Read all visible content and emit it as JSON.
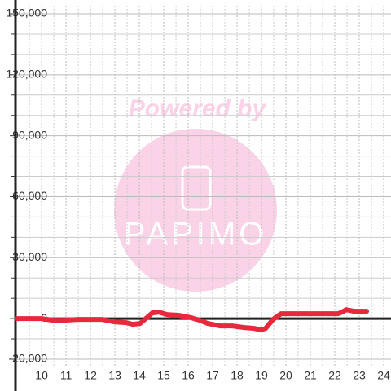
{
  "chart_data": {
    "type": "line",
    "x": [
      9.0,
      9.97,
      10.47,
      10.97,
      11.47,
      12.47,
      12.97,
      13.47,
      13.73,
      14.03,
      14.3,
      14.53,
      14.8,
      15.13,
      15.63,
      16.13,
      16.47,
      16.8,
      17.3,
      17.8,
      18.3,
      18.7,
      18.97,
      19.17,
      19.47,
      19.8,
      20.97,
      22.13,
      22.3,
      22.47,
      22.8,
      23.3
    ],
    "series": [
      {
        "color": "#e8283c",
        "values": [
          0,
          0,
          -800,
          -800,
          -400,
          -400,
          -1600,
          -2000,
          -2800,
          -2400,
          400,
          2800,
          3200,
          2000,
          1600,
          400,
          -800,
          -2400,
          -3600,
          -3600,
          -4400,
          -4800,
          -5600,
          -4800,
          -400,
          2400,
          2400,
          2400,
          3200,
          4400,
          3600,
          3600
        ]
      }
    ],
    "xlim": [
      8.93,
      24.3
    ],
    "xticks": [
      10,
      11,
      12,
      13,
      14,
      15,
      16,
      17,
      18,
      19,
      20,
      21,
      22,
      23,
      24
    ],
    "xminorticks": [
      9.5,
      10.5,
      11.5,
      12.5,
      13.5,
      14.5,
      15.5,
      16.5,
      17.5,
      18.5,
      19.5,
      20.5,
      21.5,
      22.5,
      23.5
    ],
    "ylim": [
      -20000,
      150000
    ],
    "yticks": [
      {
        "value": -20000,
        "label": "-20,000"
      },
      0,
      {
        "value": 30000,
        "label": "30,000"
      },
      {
        "value": 60000,
        "label": "60,000"
      },
      {
        "value": 90000,
        "label": "90,000"
      },
      {
        "value": 120000,
        "label": "120,000"
      },
      {
        "value": 150000,
        "label": "150,000"
      }
    ],
    "yminorticks": [
      -10000,
      10000,
      20000,
      40000,
      50000,
      70000,
      80000,
      100000,
      110000,
      130000,
      140000
    ],
    "grid": true
  },
  "watermark": {
    "text": "Powered by",
    "logo": "PAPIMO"
  }
}
